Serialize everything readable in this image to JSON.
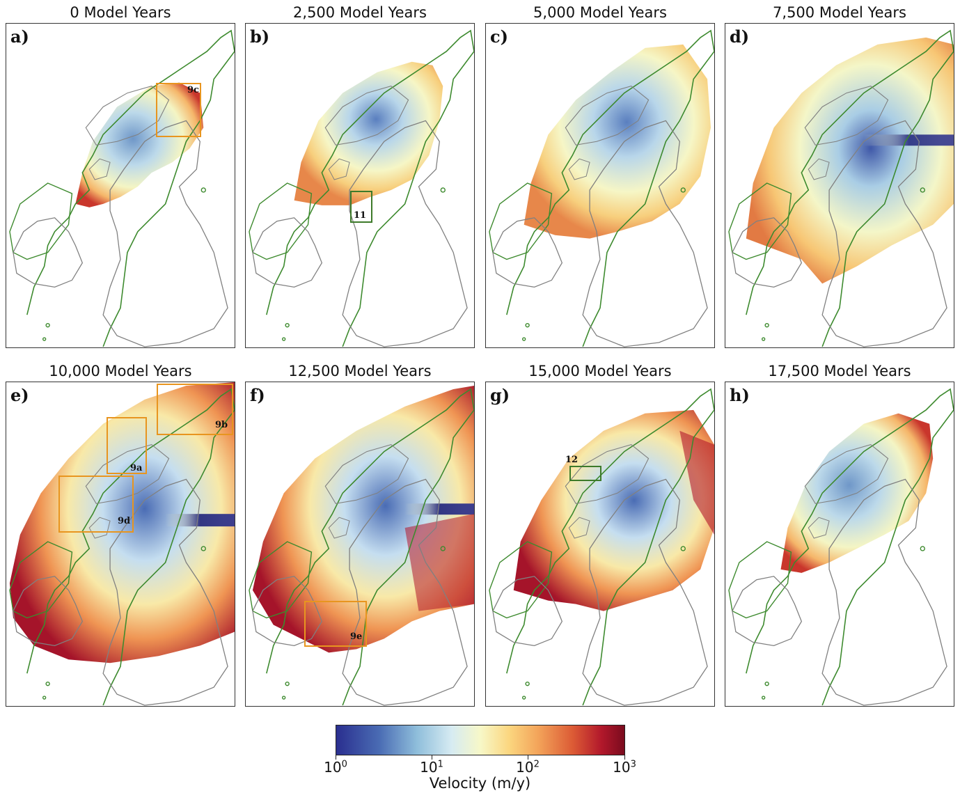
{
  "panels": [
    {
      "letter": "a)",
      "title": "0 Model Years",
      "insets": [
        {
          "label": "9c",
          "color": "orange"
        }
      ]
    },
    {
      "letter": "b)",
      "title": "2,500 Model Years",
      "insets": [
        {
          "label": "11",
          "color": "green"
        }
      ]
    },
    {
      "letter": "c)",
      "title": "5,000 Model Years",
      "insets": []
    },
    {
      "letter": "d)",
      "title": "7,500 Model Years",
      "insets": []
    },
    {
      "letter": "e)",
      "title": "10,000 Model Years",
      "insets": [
        {
          "label": "9b",
          "color": "orange"
        },
        {
          "label": "9a",
          "color": "orange"
        },
        {
          "label": "9d",
          "color": "orange"
        }
      ]
    },
    {
      "letter": "f)",
      "title": "12,500 Model Years",
      "insets": [
        {
          "label": "9e",
          "color": "orange"
        }
      ]
    },
    {
      "letter": "g)",
      "title": "15,000 Model Years",
      "insets": [
        {
          "label": "12",
          "color": "green"
        }
      ]
    },
    {
      "letter": "h)",
      "title": "17,500 Model Years",
      "insets": []
    }
  ],
  "colorbar": {
    "label": "Velocity (m/y)",
    "scale": "log",
    "range": [
      1,
      1000
    ],
    "ticks": [
      {
        "base": "10",
        "exp": "0"
      },
      {
        "base": "10",
        "exp": "1"
      },
      {
        "base": "10",
        "exp": "2"
      },
      {
        "base": "10",
        "exp": "3"
      }
    ],
    "colors": [
      "#2a2f8f",
      "#8fbedb",
      "#f7f8c8",
      "#f3a45a",
      "#b2182b",
      "#7a0b1e"
    ]
  },
  "map_colors": {
    "coastline": "#3d8a2e",
    "land_outline": "#777777",
    "orange_box": "#e8951f",
    "green_box": "#3d7a2a"
  }
}
